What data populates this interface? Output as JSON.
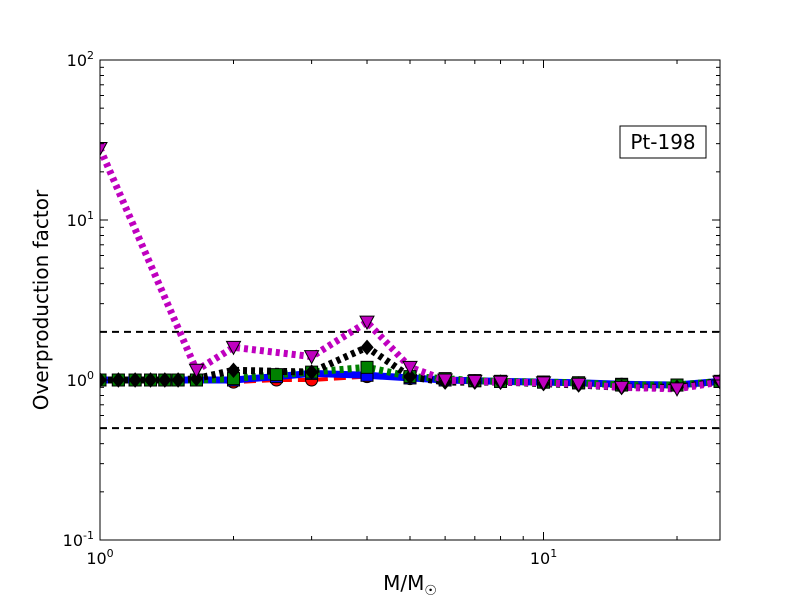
{
  "chart_data": {
    "type": "line",
    "xscale": "log",
    "yscale": "log",
    "xlim": [
      1,
      25
    ],
    "ylim": [
      0.1,
      100
    ],
    "xlabel": "M/M",
    "xlabel_sub": "☉",
    "ylabel": "Overproduction factor",
    "annotation": "Pt-198",
    "x_ticks": [
      {
        "value": 1,
        "base": "10",
        "exp": "0"
      },
      {
        "value": 10,
        "base": "10",
        "exp": "1"
      }
    ],
    "y_ticks": [
      {
        "value": 0.1,
        "base": "10",
        "exp": "-1"
      },
      {
        "value": 1,
        "base": "10",
        "exp": "0"
      },
      {
        "value": 10,
        "base": "10",
        "exp": "1"
      },
      {
        "value": 100,
        "base": "10",
        "exp": "2"
      }
    ],
    "reference_lines": [
      0.5,
      2
    ],
    "series": [
      {
        "color": "#ff0000",
        "dash": "dashed",
        "marker": "circle",
        "points": [
          [
            1,
            1
          ],
          [
            1.1,
            1
          ],
          [
            1.2,
            1
          ],
          [
            1.3,
            1
          ],
          [
            1.4,
            1
          ],
          [
            1.5,
            1
          ],
          [
            1.65,
            1.0
          ],
          [
            2,
            0.97
          ],
          [
            2.5,
            1.0
          ],
          [
            3,
            1.0
          ],
          [
            4,
            1.05
          ],
          [
            5,
            1.02
          ],
          [
            6,
            1.0
          ],
          [
            7,
            0.99
          ],
          [
            8,
            0.98
          ],
          [
            10,
            0.97
          ],
          [
            12,
            0.96
          ],
          [
            15,
            0.94
          ],
          [
            20,
            0.92
          ],
          [
            25,
            0.98
          ]
        ]
      },
      {
        "color": "#0000ff",
        "dash": "solid",
        "marker": "square",
        "points": [
          [
            1,
            1
          ],
          [
            1.1,
            1
          ],
          [
            1.2,
            1
          ],
          [
            1.3,
            1
          ],
          [
            1.4,
            1
          ],
          [
            1.5,
            1
          ],
          [
            1.65,
            1
          ],
          [
            2,
            1
          ],
          [
            2.5,
            1.05
          ],
          [
            3,
            1.1
          ],
          [
            4,
            1.07
          ],
          [
            5,
            1.03
          ],
          [
            6,
            1.0
          ],
          [
            7,
            0.99
          ],
          [
            8,
            0.98
          ],
          [
            10,
            0.97
          ],
          [
            12,
            0.96
          ],
          [
            15,
            0.94
          ],
          [
            20,
            0.93
          ],
          [
            25,
            0.98
          ]
        ]
      },
      {
        "color": "#008000",
        "dash": "dotted",
        "marker": "square",
        "points": [
          [
            1,
            1
          ],
          [
            1.1,
            1
          ],
          [
            1.2,
            1
          ],
          [
            1.3,
            1
          ],
          [
            1.4,
            1
          ],
          [
            1.5,
            1
          ],
          [
            1.65,
            1
          ],
          [
            2,
            1.02
          ],
          [
            2.5,
            1.08
          ],
          [
            3,
            1.12
          ],
          [
            4,
            1.2
          ],
          [
            5,
            1.05
          ],
          [
            6,
            1.02
          ],
          [
            7,
            0.99
          ],
          [
            8,
            0.98
          ],
          [
            10,
            0.97
          ],
          [
            12,
            0.96
          ],
          [
            15,
            0.93
          ],
          [
            20,
            0.93
          ],
          [
            25,
            0.98
          ]
        ]
      },
      {
        "color": "#000000",
        "dash": "dotted",
        "marker": "diamond",
        "points": [
          [
            1,
            1
          ],
          [
            1.1,
            1
          ],
          [
            1.2,
            1
          ],
          [
            1.3,
            1
          ],
          [
            1.4,
            1
          ],
          [
            1.5,
            1
          ],
          [
            1.65,
            1.02
          ],
          [
            2,
            1.15
          ],
          [
            3,
            1.12
          ],
          [
            4,
            1.6
          ],
          [
            5,
            1.05
          ],
          [
            6,
            0.97
          ],
          [
            7,
            0.97
          ],
          [
            8,
            0.97
          ],
          [
            10,
            0.95
          ],
          [
            12,
            0.93
          ],
          [
            15,
            0.9
          ],
          [
            20,
            0.9
          ],
          [
            25,
            0.98
          ]
        ]
      },
      {
        "color": "#bf00bf",
        "dash": "dotted",
        "marker": "triangle-down",
        "points": [
          [
            1,
            28
          ],
          [
            1.65,
            1.15
          ],
          [
            2,
            1.6
          ],
          [
            3,
            1.4
          ],
          [
            4,
            2.3
          ],
          [
            5,
            1.2
          ],
          [
            6,
            1.0
          ],
          [
            7,
            0.98
          ],
          [
            8,
            0.97
          ],
          [
            10,
            0.96
          ],
          [
            12,
            0.94
          ],
          [
            15,
            0.9
          ],
          [
            20,
            0.88
          ],
          [
            25,
            0.97
          ]
        ]
      }
    ]
  }
}
